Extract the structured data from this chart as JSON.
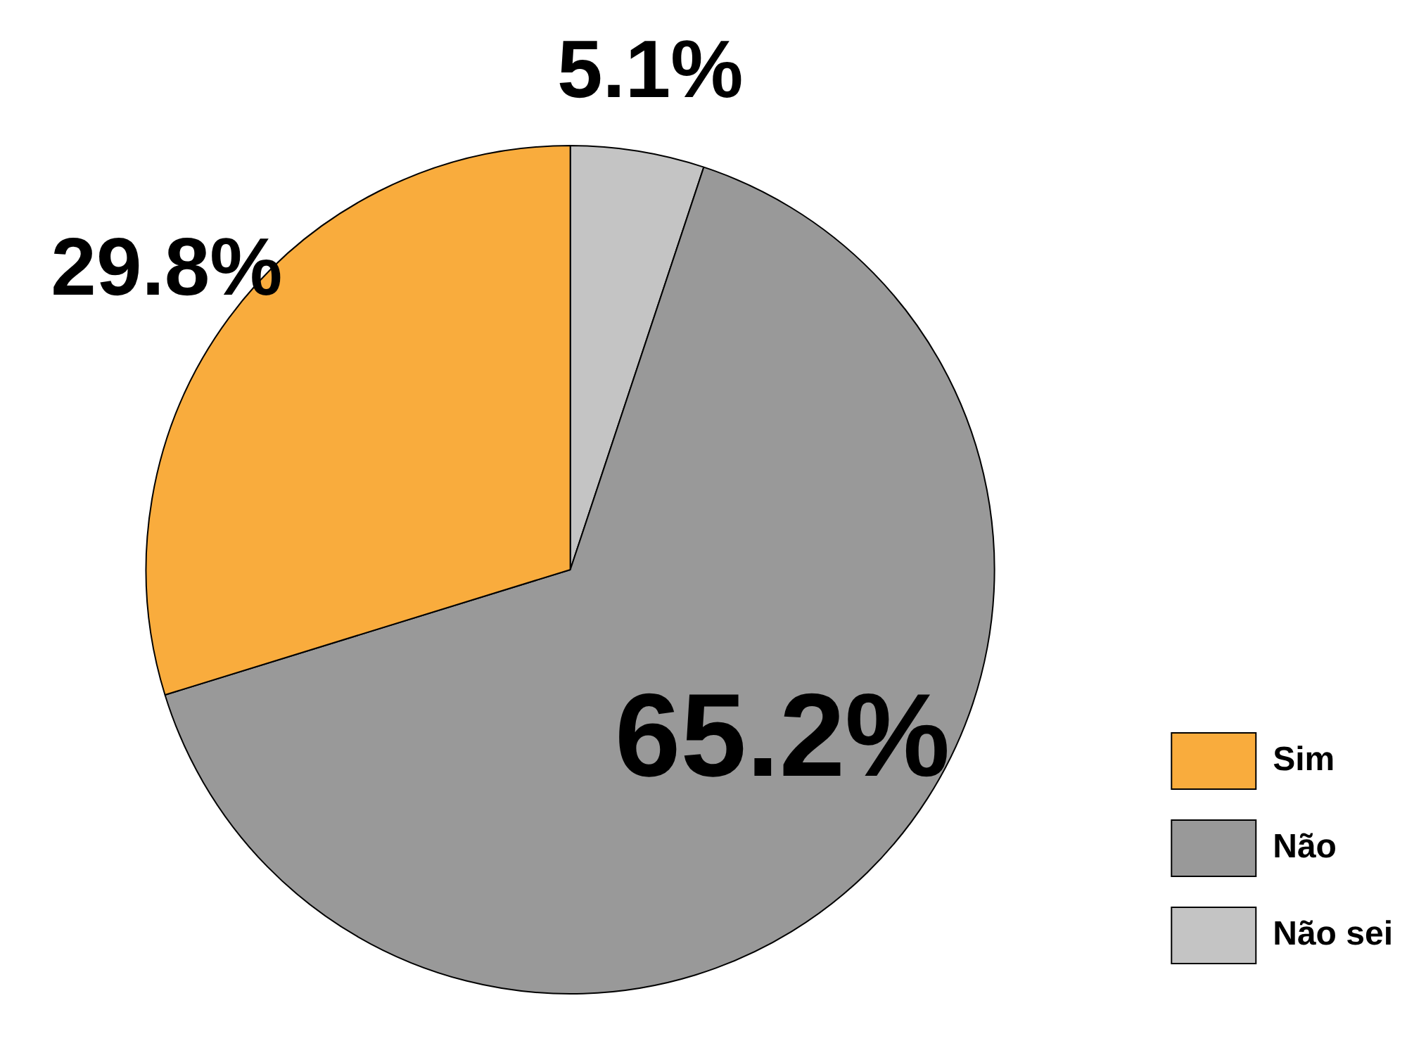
{
  "chart_data": {
    "type": "pie",
    "categories": [
      "Não sei",
      "Não",
      "Sim"
    ],
    "values": [
      5.1,
      65.2,
      29.8
    ],
    "colors": [
      "#c4c4c4",
      "#999999",
      "#f9ac3d"
    ],
    "value_labels": [
      "5.1%",
      "65.2%",
      "29.8%"
    ],
    "legend": "bottom right"
  }
}
